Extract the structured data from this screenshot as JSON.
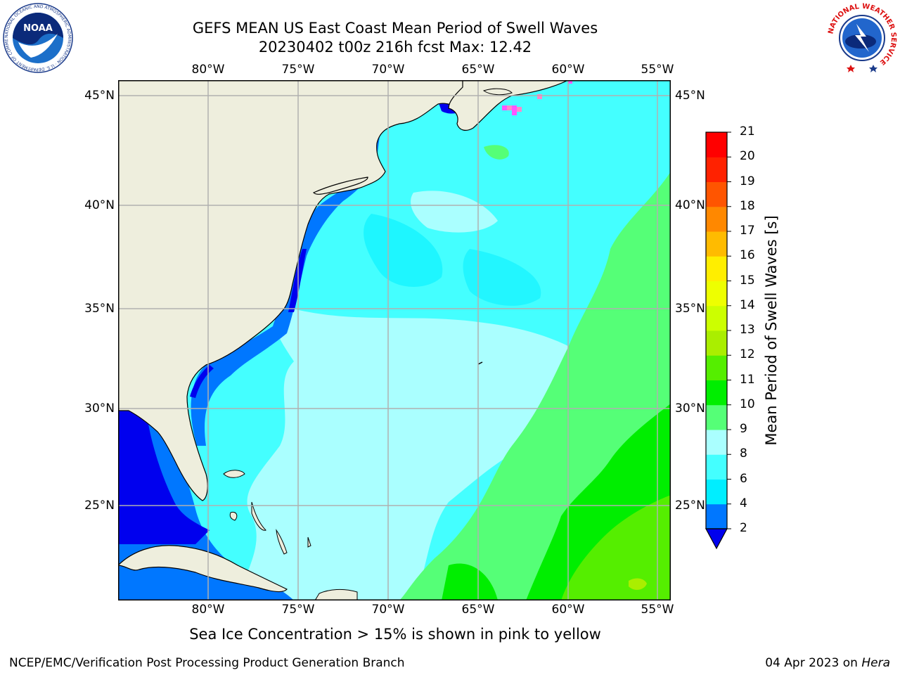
{
  "title_line1": "GEFS MEAN US East Coast Mean Period of Swell Waves",
  "title_line2": "20230402 t00z 216h fcst   Max: 12.42",
  "logos": {
    "left": "noaa-logo",
    "left_ring_text": "NATIONAL OCEANIC AND ATMOSPHERIC ADMINISTRATION · U.S. DEPARTMENT OF COMMERCE",
    "left_center_text": "NOAA",
    "right": "nws-logo",
    "right_ring_text": "NATIONAL WEATHER SERVICE"
  },
  "map": {
    "lon_labels": [
      "80°W",
      "75°W",
      "70°W",
      "65°W",
      "60°W",
      "55°W"
    ],
    "lat_labels_left": [
      "45°N",
      "40°N",
      "35°N",
      "30°N",
      "25°N"
    ],
    "lat_labels_right": [
      "45°N",
      "40°N",
      "35°N",
      "30°N",
      "25°N"
    ],
    "lon_range": [
      -85,
      -54.5
    ],
    "lat_range": [
      20.5,
      46
    ],
    "land_color": "#eeeedd",
    "grid_color": "#b0b0b0"
  },
  "colorbar": {
    "title": "Mean Period of Swell Waves [s]",
    "levels": [
      "2",
      "4",
      "6",
      "8",
      "9",
      "10",
      "11",
      "12",
      "13",
      "14",
      "15",
      "16",
      "17",
      "18",
      "19",
      "20",
      "21"
    ],
    "colors": [
      "#0000ee",
      "#0077ff",
      "#00eeff",
      "#44ffff",
      "#aaffff",
      "#55ff77",
      "#00ee00",
      "#55ee00",
      "#aaee00",
      "#ccff00",
      "#eeff00",
      "#ffee00",
      "#ffbb00",
      "#ff8800",
      "#ff5500",
      "#ff2200",
      "#ff0000"
    ],
    "under_color": "#0000ee"
  },
  "caption": "Sea Ice Concentration > 15% is shown in pink to yellow",
  "footer_left": "NCEP/EMC/Verification Post Processing Product Generation Branch",
  "footer_right_date": "04 Apr 2023 on",
  "footer_right_host": "Hera"
}
